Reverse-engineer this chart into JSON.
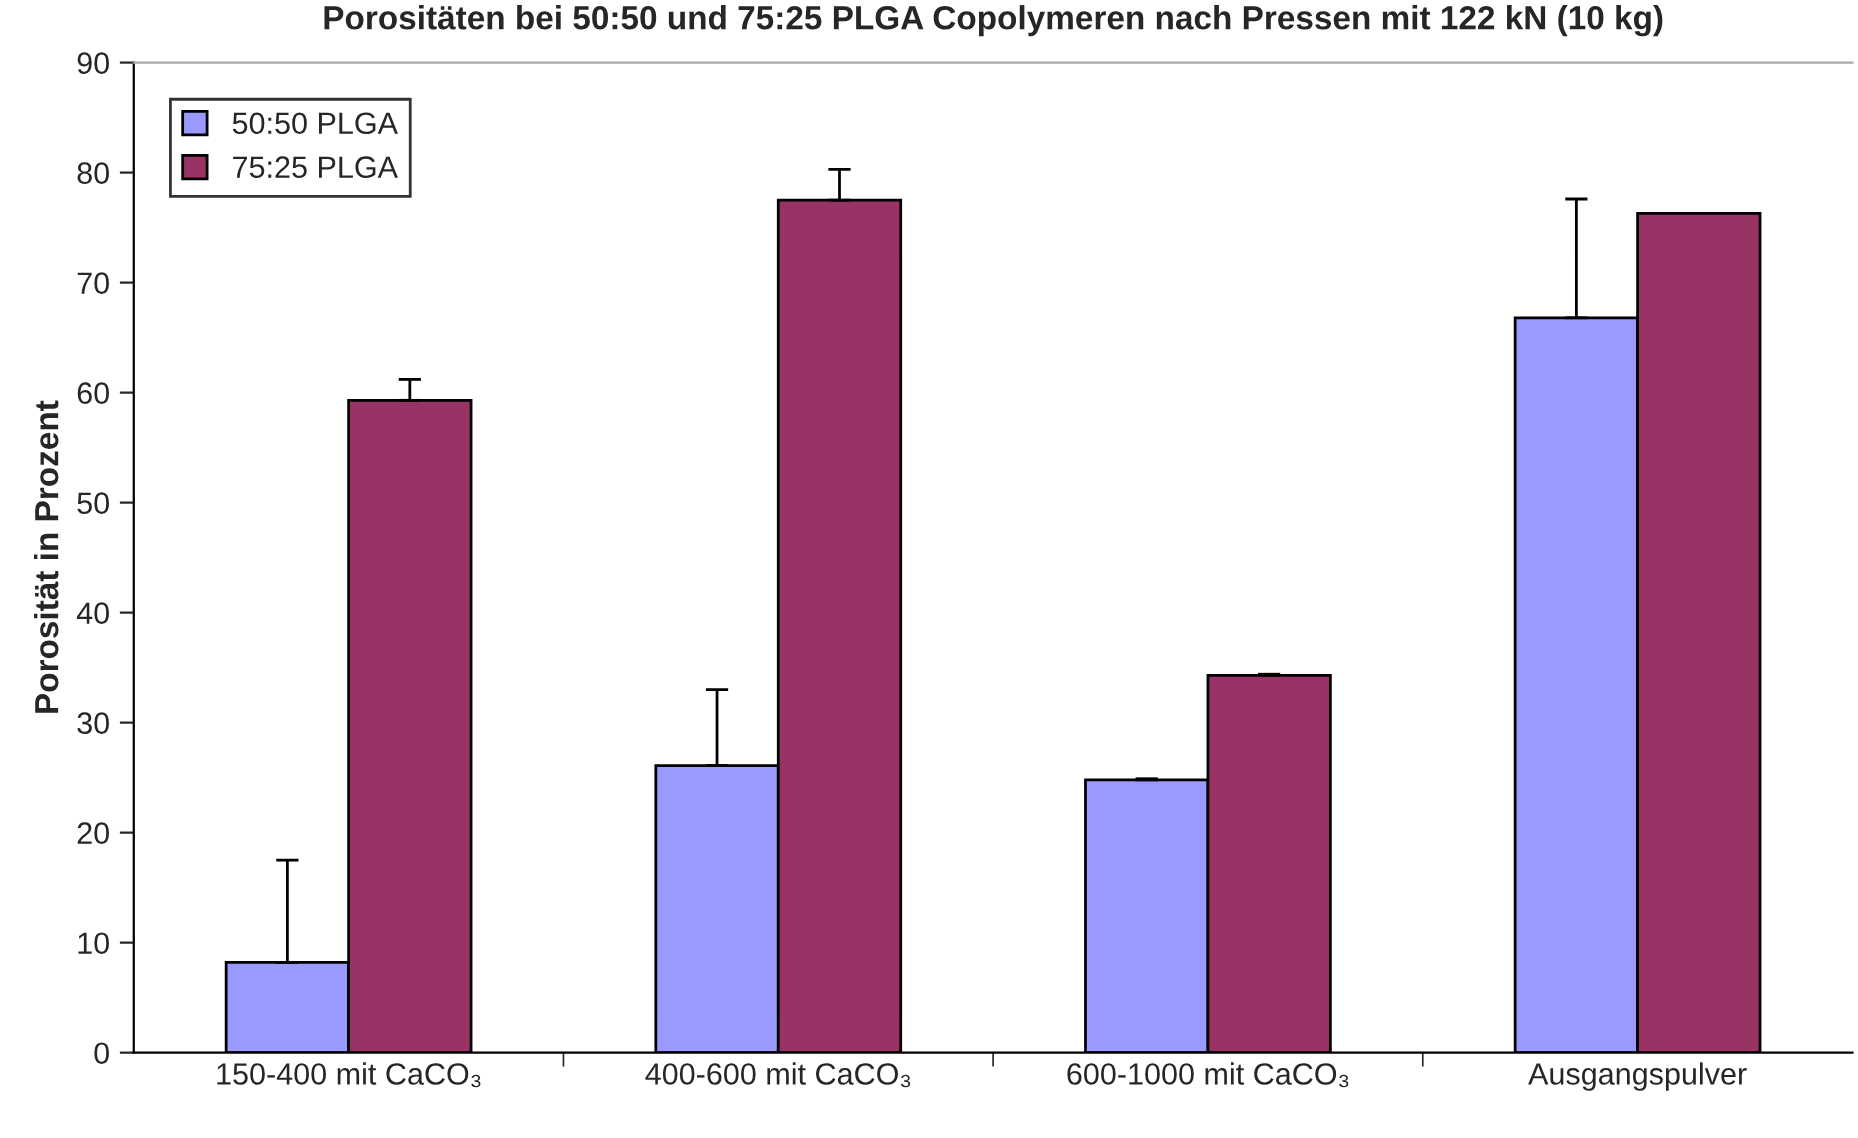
{
  "chart_data": {
    "type": "bar",
    "title": "Porositäten bei 50:50 und 75:25 PLGA Copolymeren nach Pressen mit 122 kN (10 kg)",
    "ylabel": "Porosität in Prozent",
    "categories": [
      "150-400 mit CaCO₃",
      "400-600 mit CaCO₃",
      "600-1000 mit CaCO₃",
      "Ausgangspulver"
    ],
    "series": [
      {
        "name": "50:50 PLGA",
        "color": "#9999ff",
        "values": [
          8.2,
          26.1,
          24.8,
          66.8
        ],
        "errors": [
          [
            8.2,
            17.5
          ],
          [
            26.1,
            33.0
          ],
          [
            24.8,
            24.9
          ],
          [
            66.8,
            77.6
          ]
        ]
      },
      {
        "name": "75:25 PLGA",
        "color": "#993366",
        "values": [
          59.3,
          77.5,
          34.3,
          76.3
        ],
        "errors": [
          [
            59.3,
            61.2
          ],
          [
            77.5,
            80.3
          ],
          [
            34.3,
            34.4
          ],
          null
        ]
      }
    ],
    "ylim": [
      0,
      90
    ],
    "yticks": [
      0,
      10,
      20,
      30,
      40,
      50,
      60,
      70,
      80,
      90
    ],
    "legend": "top left"
  }
}
